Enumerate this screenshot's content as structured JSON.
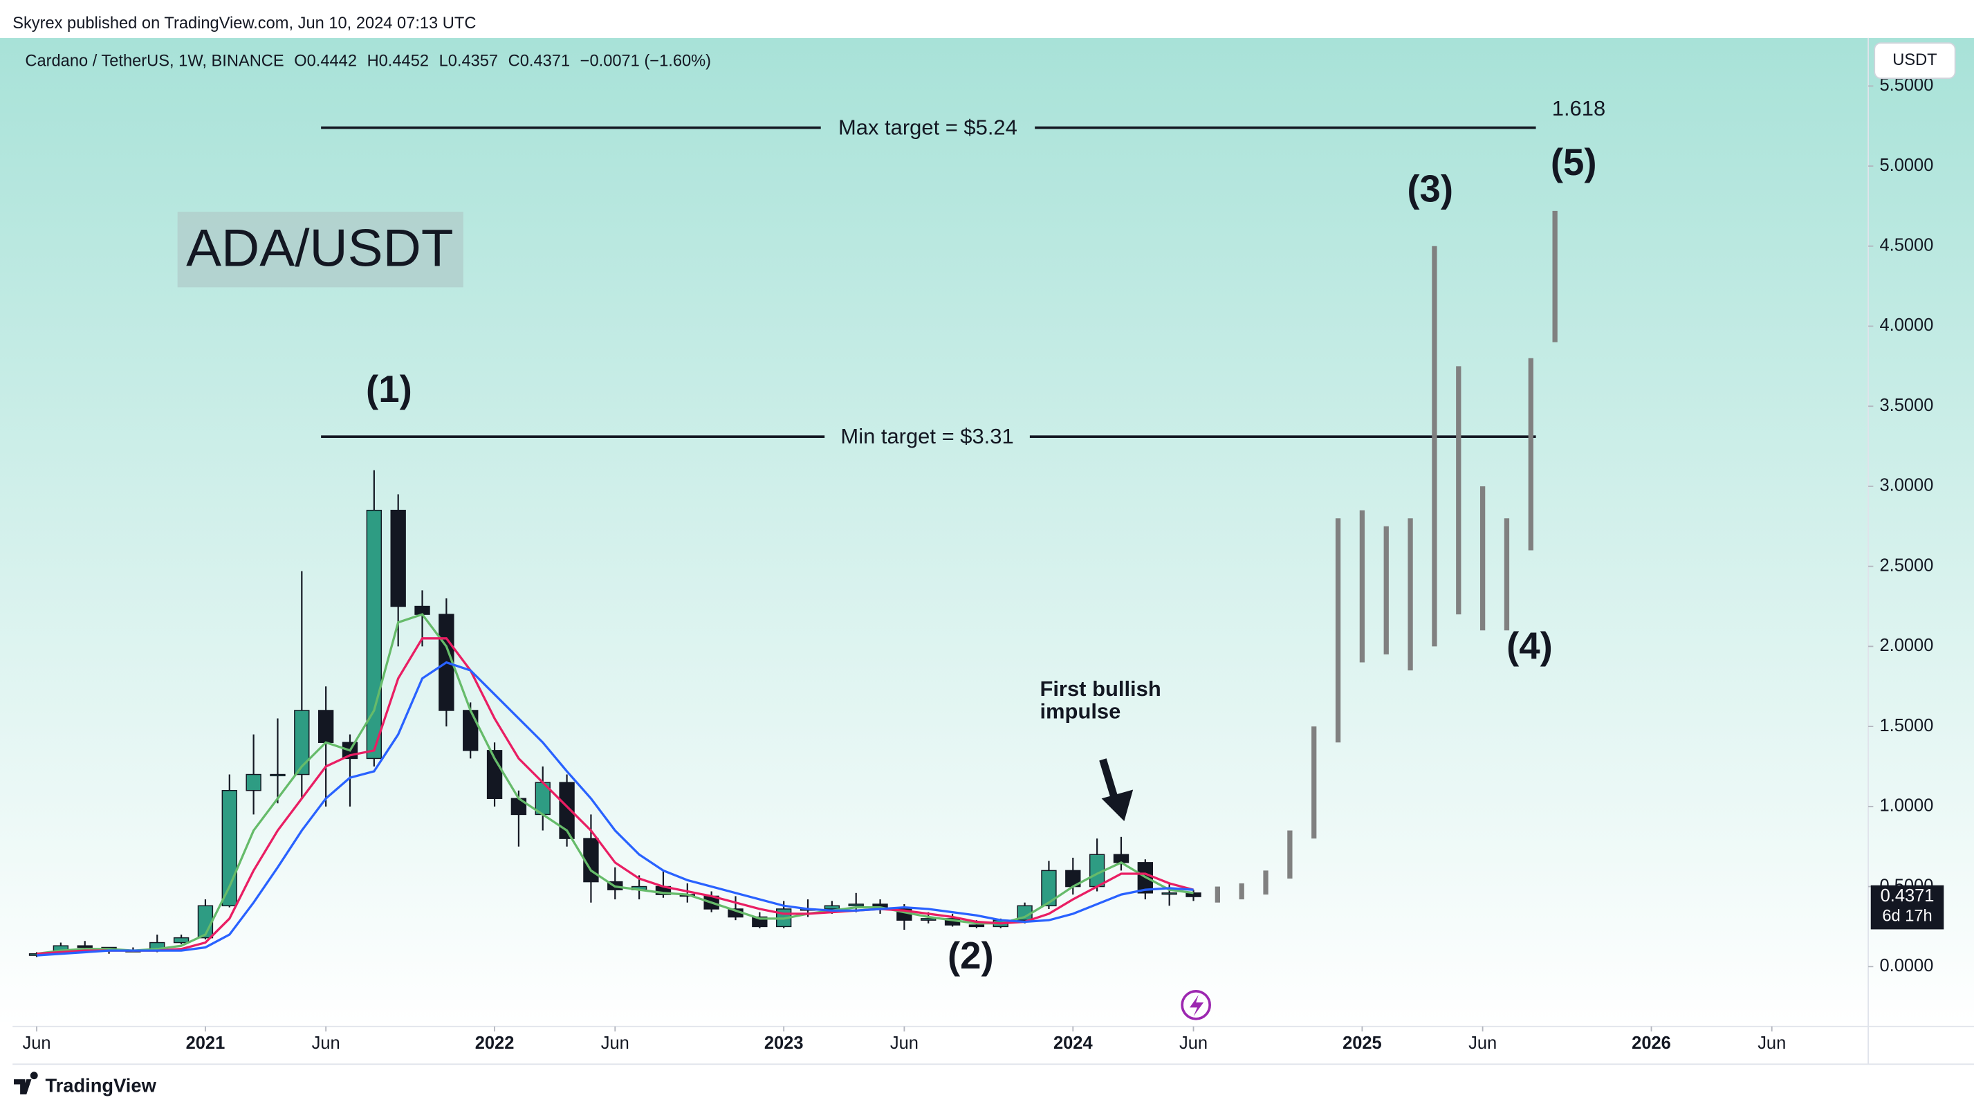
{
  "header": "Skyrex published on TradingView.com, Jun 10, 2024 07:13 UTC",
  "footer": "TradingView",
  "chart_data": {
    "type": "candlestick",
    "symbol": "Cardano / TetherUS, 1W, BINANCE",
    "ohlc_header": [
      "O0.4442",
      "H0.4452",
      "L0.4357",
      "C0.4371",
      "−0.0071 (−1.60%)"
    ],
    "currency": "USDT",
    "title": "ADA/USDT",
    "wave_labels": [
      "(1)",
      "(2)",
      "(3)",
      "(4)",
      "(5)"
    ],
    "annotation": [
      "First bullish",
      "impulse"
    ],
    "fib_label": "1.618",
    "levels": [
      {
        "value": 5.24,
        "label": "Max target = $5.24"
      },
      {
        "value": 3.31,
        "label": "Min target = $3.31"
      }
    ],
    "price_label": {
      "value": 0.4371,
      "label": "0.4371"
    },
    "countdown": "6d 17h",
    "xlim": [
      "2020-05",
      "2026-10"
    ],
    "ylim": [
      -0.35,
      5.8
    ],
    "xticks": [
      {
        "value": "2020-06",
        "label": "Jun"
      },
      {
        "value": "2021-01",
        "label": "2021"
      },
      {
        "value": "2021-06",
        "label": "Jun"
      },
      {
        "value": "2022-01",
        "label": "2022"
      },
      {
        "value": "2022-06",
        "label": "Jun"
      },
      {
        "value": "2023-01",
        "label": "2023"
      },
      {
        "value": "2023-06",
        "label": "Jun"
      },
      {
        "value": "2024-01",
        "label": "2024"
      },
      {
        "value": "2024-06",
        "label": "Jun"
      },
      {
        "value": "2025-01",
        "label": "2025"
      },
      {
        "value": "2025-06",
        "label": "Jun"
      },
      {
        "value": "2026-01",
        "label": "2026"
      },
      {
        "value": "2026-06",
        "label": "Jun"
      }
    ],
    "yticks": [
      {
        "value": 0,
        "label": "0.0000"
      },
      {
        "value": 0.5,
        "label": "0.5000"
      },
      {
        "value": 1,
        "label": "1.0000"
      },
      {
        "value": 1.5,
        "label": "1.5000"
      },
      {
        "value": 2,
        "label": "2.0000"
      },
      {
        "value": 2.5,
        "label": "2.5000"
      },
      {
        "value": 3,
        "label": "3.0000"
      },
      {
        "value": 3.5,
        "label": "3.5000"
      },
      {
        "value": 4,
        "label": "4.0000"
      },
      {
        "value": 4.5,
        "label": "4.5000"
      },
      {
        "value": 5,
        "label": "5.0000"
      },
      {
        "value": 5.5,
        "label": "5.5000"
      }
    ],
    "candles": {
      "up_color": "#2e9c83",
      "down_color": "#131722",
      "x": [
        "2020-06",
        "2020-07",
        "2020-08",
        "2020-09",
        "2020-10",
        "2020-11",
        "2020-12",
        "2021-01",
        "2021-02",
        "2021-03",
        "2021-04",
        "2021-05",
        "2021-06",
        "2021-07",
        "2021-08",
        "2021-09",
        "2021-10",
        "2021-11",
        "2021-12",
        "2022-01",
        "2022-02",
        "2022-03",
        "2022-04",
        "2022-05",
        "2022-06",
        "2022-07",
        "2022-08",
        "2022-09",
        "2022-10",
        "2022-11",
        "2022-12",
        "2023-01",
        "2023-02",
        "2023-03",
        "2023-04",
        "2023-05",
        "2023-06",
        "2023-07",
        "2023-08",
        "2023-09",
        "2023-10",
        "2023-11",
        "2023-12",
        "2024-01",
        "2024-02",
        "2024-03",
        "2024-04",
        "2024-05",
        "2024-06"
      ],
      "open": [
        0.07,
        0.08,
        0.13,
        0.12,
        0.1,
        0.1,
        0.15,
        0.18,
        0.38,
        1.1,
        1.2,
        1.2,
        1.6,
        1.4,
        1.3,
        2.85,
        2.25,
        2.2,
        1.6,
        1.35,
        1.05,
        0.95,
        1.15,
        0.8,
        0.53,
        0.48,
        0.5,
        0.45,
        0.44,
        0.36,
        0.31,
        0.25,
        0.36,
        0.36,
        0.38,
        0.39,
        0.36,
        0.29,
        0.3,
        0.26,
        0.25,
        0.29,
        0.38,
        0.6,
        0.5,
        0.7,
        0.65,
        0.46,
        0.46
      ],
      "high": [
        0.09,
        0.15,
        0.16,
        0.12,
        0.12,
        0.2,
        0.2,
        0.42,
        1.2,
        1.45,
        1.55,
        2.47,
        1.75,
        1.45,
        3.1,
        2.95,
        2.35,
        2.3,
        1.65,
        1.4,
        1.1,
        1.25,
        1.2,
        0.95,
        0.62,
        0.57,
        0.6,
        0.52,
        0.47,
        0.44,
        0.34,
        0.41,
        0.42,
        0.41,
        0.46,
        0.42,
        0.39,
        0.34,
        0.33,
        0.29,
        0.3,
        0.4,
        0.66,
        0.68,
        0.8,
        0.81,
        0.67,
        0.52,
        0.48
      ],
      "low": [
        0.06,
        0.08,
        0.11,
        0.08,
        0.09,
        0.09,
        0.14,
        0.17,
        0.37,
        0.95,
        1.02,
        1.05,
        1.0,
        1.0,
        1.25,
        2.0,
        2.0,
        1.5,
        1.3,
        1.0,
        0.75,
        0.85,
        0.75,
        0.4,
        0.42,
        0.42,
        0.43,
        0.4,
        0.34,
        0.29,
        0.24,
        0.24,
        0.31,
        0.33,
        0.34,
        0.33,
        0.23,
        0.27,
        0.25,
        0.24,
        0.24,
        0.27,
        0.36,
        0.45,
        0.47,
        0.6,
        0.42,
        0.38,
        0.41
      ],
      "close": [
        0.08,
        0.13,
        0.12,
        0.1,
        0.1,
        0.15,
        0.18,
        0.38,
        1.1,
        1.2,
        1.2,
        1.6,
        1.4,
        1.3,
        2.85,
        2.25,
        2.2,
        1.6,
        1.35,
        1.05,
        0.95,
        1.15,
        0.8,
        0.53,
        0.48,
        0.5,
        0.45,
        0.44,
        0.36,
        0.31,
        0.25,
        0.36,
        0.36,
        0.38,
        0.39,
        0.36,
        0.29,
        0.3,
        0.26,
        0.25,
        0.29,
        0.38,
        0.6,
        0.5,
        0.7,
        0.65,
        0.46,
        0.46,
        0.4371
      ]
    },
    "series": [
      {
        "color": "#66bb6a",
        "values": [
          0.08,
          0.1,
          0.11,
          0.11,
          0.1,
          0.11,
          0.13,
          0.2,
          0.5,
          0.85,
          1.05,
          1.25,
          1.4,
          1.35,
          1.6,
          2.15,
          2.2,
          2.0,
          1.6,
          1.3,
          1.05,
          0.95,
          0.85,
          0.6,
          0.5,
          0.48,
          0.46,
          0.45,
          0.4,
          0.35,
          0.3,
          0.3,
          0.33,
          0.35,
          0.37,
          0.37,
          0.34,
          0.31,
          0.29,
          0.27,
          0.27,
          0.31,
          0.4,
          0.5,
          0.58,
          0.65,
          0.56,
          0.48,
          0.46
        ]
      },
      {
        "color": "#e91e63",
        "values": [
          0.08,
          0.09,
          0.1,
          0.1,
          0.1,
          0.1,
          0.11,
          0.15,
          0.3,
          0.6,
          0.85,
          1.05,
          1.25,
          1.32,
          1.35,
          1.8,
          2.05,
          2.05,
          1.85,
          1.55,
          1.3,
          1.15,
          1.0,
          0.85,
          0.65,
          0.55,
          0.5,
          0.47,
          0.44,
          0.4,
          0.36,
          0.33,
          0.33,
          0.34,
          0.35,
          0.36,
          0.35,
          0.33,
          0.31,
          0.28,
          0.27,
          0.28,
          0.33,
          0.42,
          0.5,
          0.58,
          0.58,
          0.52,
          0.48
        ]
      },
      {
        "color": "#2962ff",
        "values": [
          0.07,
          0.08,
          0.09,
          0.1,
          0.1,
          0.1,
          0.1,
          0.12,
          0.2,
          0.4,
          0.62,
          0.85,
          1.05,
          1.18,
          1.22,
          1.45,
          1.8,
          1.9,
          1.85,
          1.7,
          1.55,
          1.4,
          1.22,
          1.05,
          0.85,
          0.7,
          0.6,
          0.54,
          0.5,
          0.46,
          0.42,
          0.38,
          0.36,
          0.35,
          0.35,
          0.36,
          0.37,
          0.36,
          0.34,
          0.32,
          0.29,
          0.28,
          0.29,
          0.33,
          0.39,
          0.45,
          0.48,
          0.49,
          0.48
        ]
      }
    ],
    "projection": {
      "color": "#808080",
      "x": [
        "2024-07",
        "2024-08",
        "2024-09",
        "2024-10",
        "2024-11",
        "2024-12",
        "2025-01",
        "2025-02",
        "2025-03",
        "2025-04",
        "2025-05",
        "2025-06",
        "2025-07",
        "2025-08",
        "2025-09"
      ],
      "high": [
        0.5,
        0.52,
        0.6,
        0.85,
        1.5,
        2.8,
        2.85,
        2.75,
        2.8,
        4.5,
        3.75,
        3.0,
        2.8,
        3.8,
        4.72
      ],
      "low": [
        0.4,
        0.42,
        0.45,
        0.55,
        0.8,
        1.4,
        1.9,
        1.95,
        1.85,
        2.0,
        2.2,
        2.1,
        2.1,
        2.6,
        3.9
      ]
    }
  }
}
